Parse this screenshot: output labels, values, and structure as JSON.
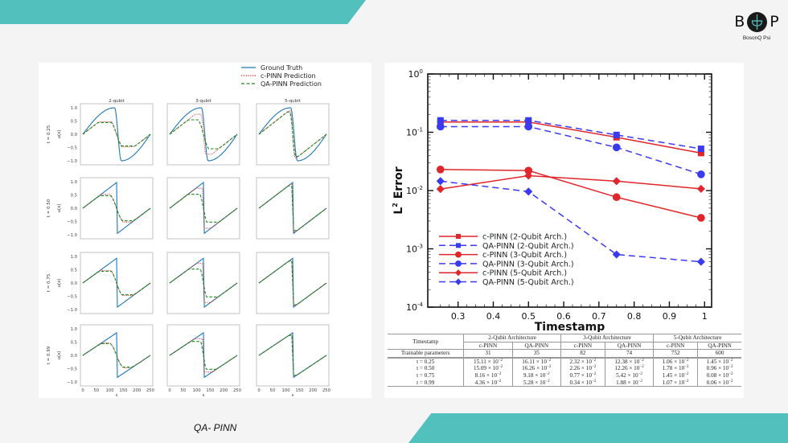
{
  "brand": {
    "logo_left_letter": "B",
    "logo_right_letter": "P",
    "name": "BosonQ Psi",
    "accent_color": "#52c0bd"
  },
  "caption": "QA- PINN",
  "left_figure": {
    "legend": [
      {
        "label": "Ground Truth",
        "color": "#1f77b4",
        "style": "solid"
      },
      {
        "label": "c-PINN Prediction",
        "color": "#e02020",
        "style": "dotted"
      },
      {
        "label": "QA-PINN Prediction",
        "color": "#1a8a1a",
        "style": "dashed"
      }
    ],
    "column_titles": [
      "2-qubit",
      "3-qubit",
      "5-qubit"
    ],
    "row_labels": [
      "t = 0.25",
      "t = 0.50",
      "t = 0.75",
      "t = 0.99"
    ],
    "ylabel": "u(x)",
    "xlabel": "x",
    "yticks": [
      "1.0",
      "0.5",
      "0.0",
      "−0.5",
      "−1.0"
    ],
    "xticks": [
      "0",
      "50",
      "100",
      "150",
      "200",
      "250"
    ]
  },
  "chart_data": {
    "type": "line",
    "title": "",
    "xlabel": "Timestamp",
    "ylabel": "L2 Error",
    "ylabel_base": "L",
    "ylabel_sup": "2",
    "ylabel_rest": " Error",
    "yscale": "log",
    "xlim": [
      0.214,
      1.02
    ],
    "ylim": [
      0.0001,
      1
    ],
    "x_ticks": [
      "0.3",
      "0.4",
      "0.5",
      "0.6",
      "0.7",
      "0.8",
      "0.9",
      "1"
    ],
    "y_ticks": [
      {
        "base": "10",
        "exp": "0"
      },
      {
        "base": "10",
        "exp": "-1"
      },
      {
        "base": "10",
        "exp": "-2"
      },
      {
        "base": "10",
        "exp": "-3"
      },
      {
        "base": "10",
        "exp": "-4"
      }
    ],
    "legend_position": "bottom-left",
    "x": [
      0.25,
      0.5,
      0.75,
      0.99
    ],
    "series": [
      {
        "name": "c-PINN (2-Qubit Arch.)",
        "color": "#e0262b",
        "dash": "solid",
        "marker": "square",
        "values": [
          0.15,
          0.15,
          0.082,
          0.044
        ]
      },
      {
        "name": "QA-PINN (2-Qubit Arch.)",
        "color": "#3a3af0",
        "dash": "dashed",
        "marker": "square",
        "values": [
          0.16,
          0.16,
          0.09,
          0.052
        ]
      },
      {
        "name": "c-PINN (3-Qubit Arch.)",
        "color": "#e0262b",
        "dash": "solid",
        "marker": "circle",
        "values": [
          0.023,
          0.022,
          0.0077,
          0.0034
        ]
      },
      {
        "name": "QA-PINN (3-Qubit Arch.)",
        "color": "#3a3af0",
        "dash": "dashed",
        "marker": "circle",
        "values": [
          0.125,
          0.125,
          0.055,
          0.019
        ]
      },
      {
        "name": "c-PINN (5-Qubit Arch.)",
        "color": "#e0262b",
        "dash": "solid",
        "marker": "diamond",
        "values": [
          0.0106,
          0.018,
          0.0145,
          0.0107
        ]
      },
      {
        "name": "QA-PINN (5-Qubit Arch.)",
        "color": "#3a3af0",
        "dash": "dashed",
        "marker": "diamond",
        "values": [
          0.0145,
          0.0096,
          0.0008,
          0.0006
        ]
      }
    ]
  },
  "table": {
    "corner": "Timestamp",
    "groups": [
      "2-Qubit Architecture",
      "3-Qubit Architecture",
      "5-Qubit Architecture"
    ],
    "subheaders": [
      "c-PINN",
      "QA-PINN",
      "c-PINN",
      "QA-PINN",
      "c-PINN",
      "QA-PINN"
    ],
    "params_label": "Trainable parameters",
    "params": [
      "31",
      "35",
      "82",
      "74",
      "752",
      "600"
    ],
    "rows": [
      {
        "t": "t = 0.25",
        "cells": [
          [
            "15.11 × 10",
            "−2"
          ],
          [
            "16.11 × 10",
            "−2"
          ],
          [
            "2.32 × 10",
            "−2"
          ],
          [
            "12.38 × 10",
            "−2"
          ],
          [
            "1.06 × 10",
            "−2"
          ],
          [
            "1.45 × 10",
            "−2"
          ]
        ]
      },
      {
        "t": "t = 0.50",
        "cells": [
          [
            "15.09 × 10",
            "−2"
          ],
          [
            "16.26 × 10",
            "−2"
          ],
          [
            "2.26 × 10",
            "−2"
          ],
          [
            "12.26 × 10",
            "−2"
          ],
          [
            "1.78 × 10",
            "−2"
          ],
          [
            "0.96 × 10",
            "−2"
          ]
        ]
      },
      {
        "t": "t = 0.75",
        "cells": [
          [
            "8.16 × 10",
            "−2"
          ],
          [
            "9.18 × 10",
            "−2"
          ],
          [
            "0.77 × 10",
            "−2"
          ],
          [
            "5.42 × 10",
            "−2"
          ],
          [
            "1.45 × 10",
            "−2"
          ],
          [
            "0.08 × 10",
            "−2"
          ]
        ]
      },
      {
        "t": "t = 0.99",
        "cells": [
          [
            "4.36 × 10",
            "−2"
          ],
          [
            "5.28 × 10",
            "−2"
          ],
          [
            "0.34 × 10",
            "−2"
          ],
          [
            "1.88 × 10",
            "−2"
          ],
          [
            "1.07 × 10",
            "−2"
          ],
          [
            "0.06 × 10",
            "−2"
          ]
        ]
      }
    ]
  }
}
